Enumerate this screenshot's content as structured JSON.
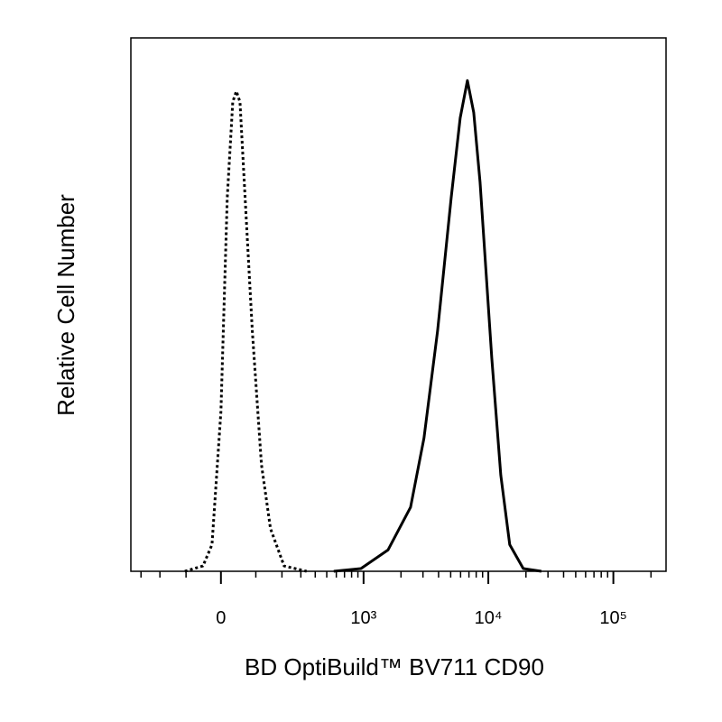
{
  "chart_data": {
    "type": "line",
    "xlabel": "BD OptiBuild™ BV711 CD90",
    "ylabel": "Relative Cell Number",
    "xscale": "biexponential",
    "xlim": [
      -368,
      263900
    ],
    "ylim": [
      0,
      100
    ],
    "xticks": [
      0,
      {
        "value": 1000,
        "label": "10³"
      },
      {
        "value": 10000,
        "label": "10⁴"
      },
      {
        "value": 100000,
        "label": "10⁵"
      }
    ],
    "xminor_ticks": [
      -300,
      -200,
      -100,
      100,
      200,
      300,
      400,
      500,
      600,
      700,
      800,
      900,
      2000,
      3000,
      4000,
      5000,
      6000,
      7000,
      8000,
      9000,
      20000,
      30000,
      40000,
      50000,
      60000,
      70000,
      80000,
      90000,
      200000
    ],
    "series": [
      {
        "color": "#000000",
        "dash": "dotted",
        "x": [
          -104,
          -49,
          -24,
          0,
          17,
          32,
          42,
          52,
          67,
          89,
          119,
          152,
          210,
          337
        ],
        "values": [
          0,
          1,
          5,
          30,
          70,
          88,
          90,
          88,
          70,
          45,
          20,
          8,
          1,
          0
        ]
      },
      {
        "color": "#000000",
        "dash": "solid",
        "x": [
          571,
          951,
          1572,
          2384,
          3058,
          3926,
          5045,
          5960,
          6805,
          7648,
          8580,
          10660,
          12590,
          14830,
          19050,
          26600
        ],
        "values": [
          0,
          0.5,
          4,
          12,
          25,
          45,
          70,
          85,
          92,
          86,
          73,
          40,
          18,
          5,
          0.5,
          0
        ]
      }
    ]
  }
}
